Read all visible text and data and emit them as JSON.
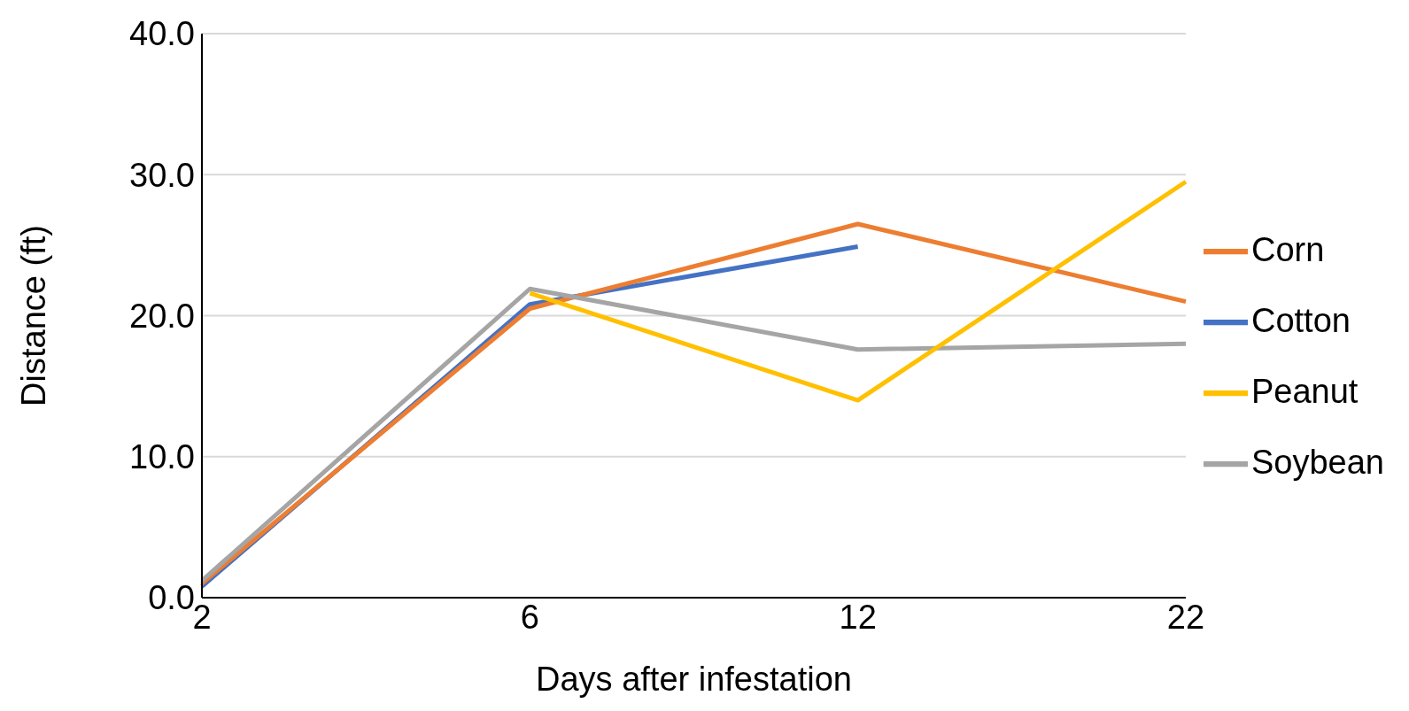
{
  "chart_data": {
    "type": "line",
    "xlabel": "Days after infestation",
    "ylabel": "Distance (ft)",
    "categories": [
      "2",
      "6",
      "12",
      "22"
    ],
    "series": [
      {
        "name": "Cotton",
        "color": "#4472c4",
        "values": [
          0.8,
          20.8,
          24.9,
          null
        ]
      },
      {
        "name": "Corn",
        "color": "#ed7d31",
        "values": [
          1.0,
          20.5,
          26.5,
          21.0
        ]
      },
      {
        "name": "Soybean",
        "color": "#a5a5a5",
        "values": [
          1.2,
          21.9,
          17.6,
          18.0
        ]
      },
      {
        "name": "Peanut",
        "color": "#ffc000",
        "values": [
          null,
          21.6,
          14.0,
          29.5
        ]
      }
    ],
    "ylim": [
      0,
      40
    ],
    "yticks": [
      {
        "value": 0,
        "label": "0.0"
      },
      {
        "value": 10,
        "label": "10.0"
      },
      {
        "value": 20,
        "label": "20.0"
      },
      {
        "value": 30,
        "label": "30.0"
      },
      {
        "value": 40,
        "label": "40.0"
      }
    ],
    "grid": "y",
    "legend": "right",
    "marker": "none",
    "line_style": "solid"
  }
}
